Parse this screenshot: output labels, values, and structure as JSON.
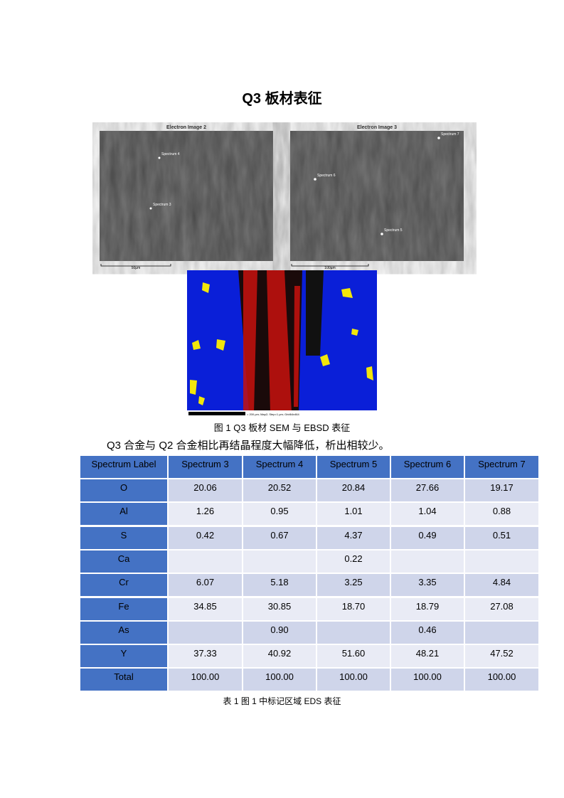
{
  "header": {
    "title": "Q3 板材表征"
  },
  "figure": {
    "left_image": {
      "title": "Electron Image 2",
      "labels": [
        "Spectrum 4",
        "Spectrum 3"
      ],
      "scale": "50µm"
    },
    "right_image": {
      "title": "Electron Image 3",
      "labels": [
        "Spectrum 7",
        "Spectrum 6",
        "Spectrum 5"
      ],
      "scale": "100µm"
    },
    "ebsd_scale": "= 200 µm; Map2; Step=1 µm; Grid64x464",
    "caption": "图 1 Q3 板材 SEM 与 EBSD 表征"
  },
  "paragraph": "Q3 合金与 Q2 合金相比再结晶程度大幅降低，析出相较少。",
  "table": {
    "header": [
      "Spectrum Label",
      "Spectrum 3",
      "Spectrum 4",
      "Spectrum 5",
      "Spectrum 6",
      "Spectrum 7"
    ],
    "rows": [
      [
        "O",
        "20.06",
        "20.52",
        "20.84",
        "27.66",
        "19.17"
      ],
      [
        "Al",
        "1.26",
        "0.95",
        "1.01",
        "1.04",
        "0.88"
      ],
      [
        "S",
        "0.42",
        "0.67",
        "4.37",
        "0.49",
        "0.51"
      ],
      [
        "Ca",
        null,
        null,
        "0.22",
        null,
        null
      ],
      [
        "Cr",
        "6.07",
        "5.18",
        "3.25",
        "3.35",
        "4.84"
      ],
      [
        "Fe",
        "34.85",
        "30.85",
        "18.70",
        "18.79",
        "27.08"
      ],
      [
        "As",
        null,
        "0.90",
        null,
        "0.46",
        null
      ],
      [
        "Y",
        "37.33",
        "40.92",
        "51.60",
        "48.21",
        "47.52"
      ],
      [
        "Total",
        "100.00",
        "100.00",
        "100.00",
        "100.00",
        "100.00"
      ]
    ],
    "caption": "表 1 图 1 中标记区域 EDS 表征"
  }
}
